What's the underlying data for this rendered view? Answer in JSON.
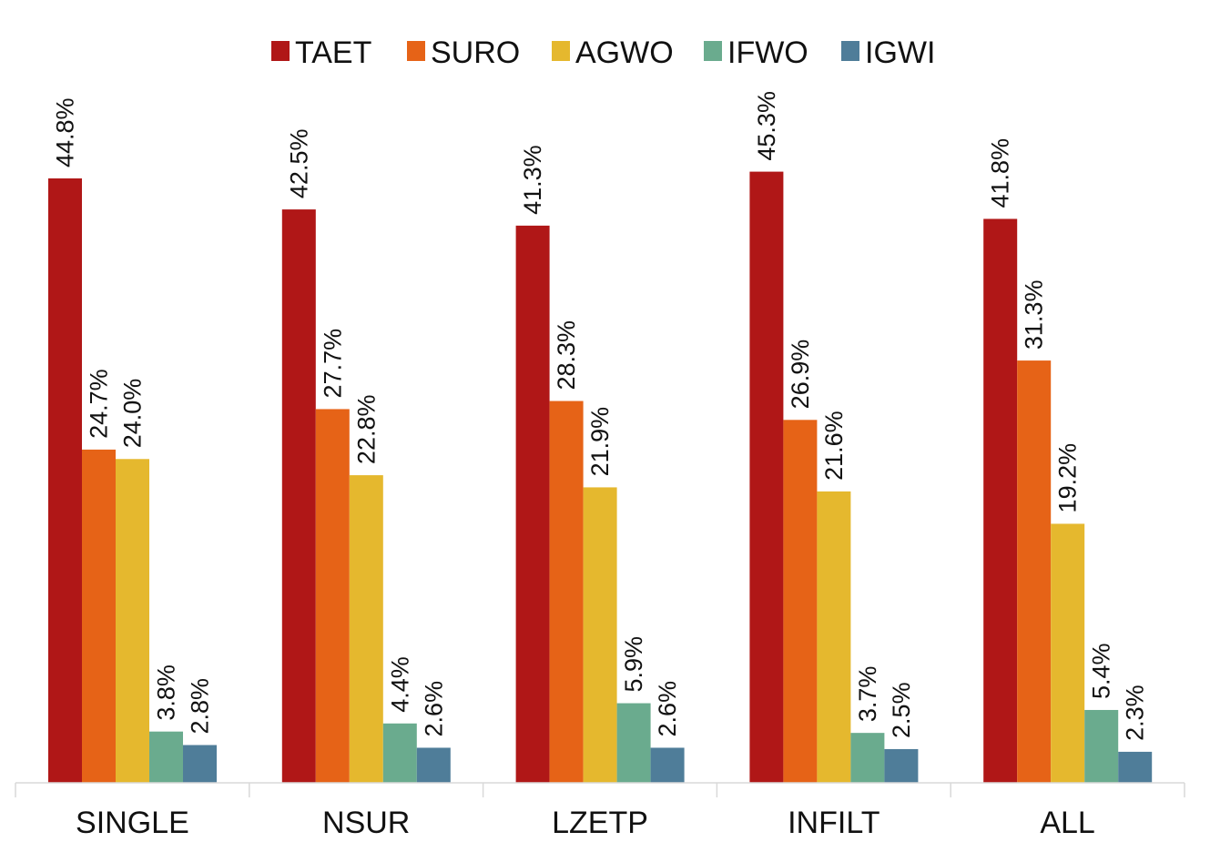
{
  "chart_data": {
    "type": "bar",
    "title": "",
    "xlabel": "",
    "ylabel": "",
    "ylim": [
      0,
      50
    ],
    "grid": false,
    "legend_position": "top-center",
    "categories": [
      "SINGLE",
      "NSUR",
      "LZETP",
      "INFILT",
      "ALL"
    ],
    "series": [
      {
        "name": "TAET",
        "color": "#b01717",
        "values": [
          44.8,
          42.5,
          41.3,
          45.3,
          41.8
        ],
        "labels": [
          "44.8%",
          "42.5%",
          "41.3%",
          "45.3%",
          "41.8%"
        ]
      },
      {
        "name": "SURO",
        "color": "#e66317",
        "values": [
          24.7,
          27.7,
          28.3,
          26.9,
          31.3
        ],
        "labels": [
          "24.7%",
          "27.7%",
          "28.3%",
          "26.9%",
          "31.3%"
        ]
      },
      {
        "name": "AGWO",
        "color": "#e5b82e",
        "values": [
          24.0,
          22.8,
          21.9,
          21.6,
          19.2
        ],
        "labels": [
          "24.0%",
          "22.8%",
          "21.9%",
          "21.6%",
          "19.2%"
        ]
      },
      {
        "name": "IFWO",
        "color": "#6aab8e",
        "values": [
          3.8,
          4.4,
          5.9,
          3.7,
          5.4
        ],
        "labels": [
          "3.8%",
          "4.4%",
          "5.9%",
          "3.7%",
          "5.4%"
        ]
      },
      {
        "name": "IGWI",
        "color": "#4f7d99",
        "values": [
          2.8,
          2.6,
          2.6,
          2.5,
          2.3
        ],
        "labels": [
          "2.8%",
          "2.6%",
          "2.6%",
          "2.5%",
          "2.3%"
        ]
      }
    ]
  }
}
